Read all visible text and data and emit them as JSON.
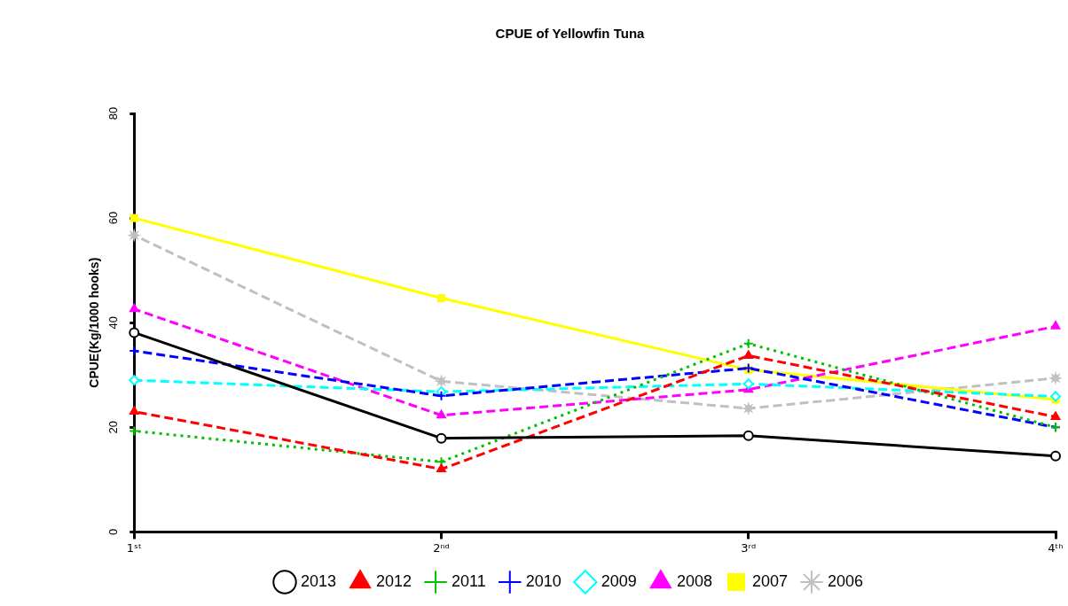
{
  "chart_data": {
    "type": "line",
    "title": "CPUE of Yellowfin Tuna",
    "ylabel": "CPUE(Kg/1000 hooks)",
    "categories": [
      "1ˢᵗ",
      "2ⁿᵈ",
      "3ʳᵈ",
      "4ᵗʰ"
    ],
    "ylim": [
      0,
      80
    ],
    "yticks": [
      0,
      20,
      40,
      60,
      80
    ],
    "grid": false,
    "legend": "bottom",
    "series": [
      {
        "name": "2013",
        "color": "#000000",
        "marker": "circle",
        "line_style": "solid",
        "values": [
          38.1,
          17.9,
          18.4,
          14.5
        ]
      },
      {
        "name": "2012",
        "color": "#ff0000",
        "marker": "triangle",
        "line_style": "dashed",
        "values": [
          23,
          12,
          33.7,
          22
        ]
      },
      {
        "name": "2011",
        "color": "#00c000",
        "marker": "cross",
        "line_style": "dotted",
        "values": [
          19.3,
          13.4,
          36,
          20
        ]
      },
      {
        "name": "2010",
        "color": "#0000ff",
        "marker": "cross",
        "line_style": "dashed",
        "values": [
          34.6,
          26,
          31.3,
          20
        ]
      },
      {
        "name": "2009",
        "color": "#00ffff",
        "marker": "diamond",
        "line_style": "dashed",
        "values": [
          29,
          26.8,
          28.3,
          25.9
        ]
      },
      {
        "name": "2008",
        "color": "#ff00ff",
        "marker": "triangle",
        "line_style": "dashed",
        "values": [
          42.6,
          22.3,
          27.2,
          39.3
        ]
      },
      {
        "name": "2007",
        "color": "#ffff00",
        "marker": "square",
        "line_style": "solid",
        "values": [
          60,
          44.7,
          31,
          25.3
        ]
      },
      {
        "name": "2006",
        "color": "#c0c0c0",
        "marker": "star",
        "line_style": "dashed",
        "values": [
          56.7,
          28.8,
          23.6,
          29.4
        ]
      }
    ]
  }
}
